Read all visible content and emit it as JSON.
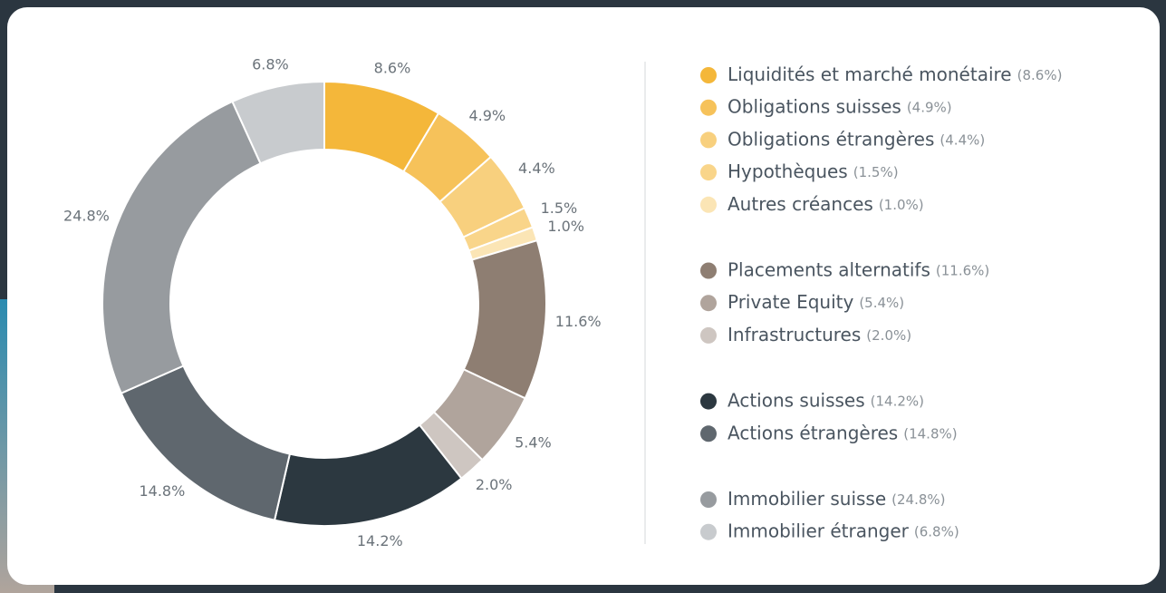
{
  "chart_data": {
    "type": "donut",
    "categories": [
      "Liquidités et marché monétaire",
      "Obligations suisses",
      "Obligations étrangères",
      "Hypothèques",
      "Autres créances",
      "Placements alternatifs",
      "Private Equity",
      "Infrastructures",
      "Actions suisses",
      "Actions étrangères",
      "Immobilier suisse",
      "Immobilier étranger"
    ],
    "values": [
      8.6,
      4.9,
      4.4,
      1.5,
      1.0,
      11.6,
      5.4,
      2.0,
      14.2,
      14.8,
      24.8,
      6.8
    ],
    "value_labels": [
      "8.6%",
      "4.9%",
      "4.4%",
      "1.5%",
      "1.0%",
      "11.6%",
      "5.4%",
      "2.0%",
      "14.2%",
      "14.8%",
      "24.8%",
      "6.8%"
    ],
    "legend_labels": [
      "(8.6%)",
      "(4.9%)",
      "(4.4%)",
      "(1.5%)",
      "(1.0%)",
      "(11.6%)",
      "(5.4%)",
      "(2.0%)",
      "(14.2%)",
      "(14.8%)",
      "(24.8%)",
      "(6.8%)"
    ],
    "colors": [
      "#f4b73a",
      "#f6c25a",
      "#f8d07e",
      "#f9d58a",
      "#fbe5b5",
      "#8e7e72",
      "#b0a49c",
      "#cec6c1",
      "#2c3840",
      "#5f676e",
      "#979b9f",
      "#c8cbce"
    ],
    "legend": "right"
  }
}
